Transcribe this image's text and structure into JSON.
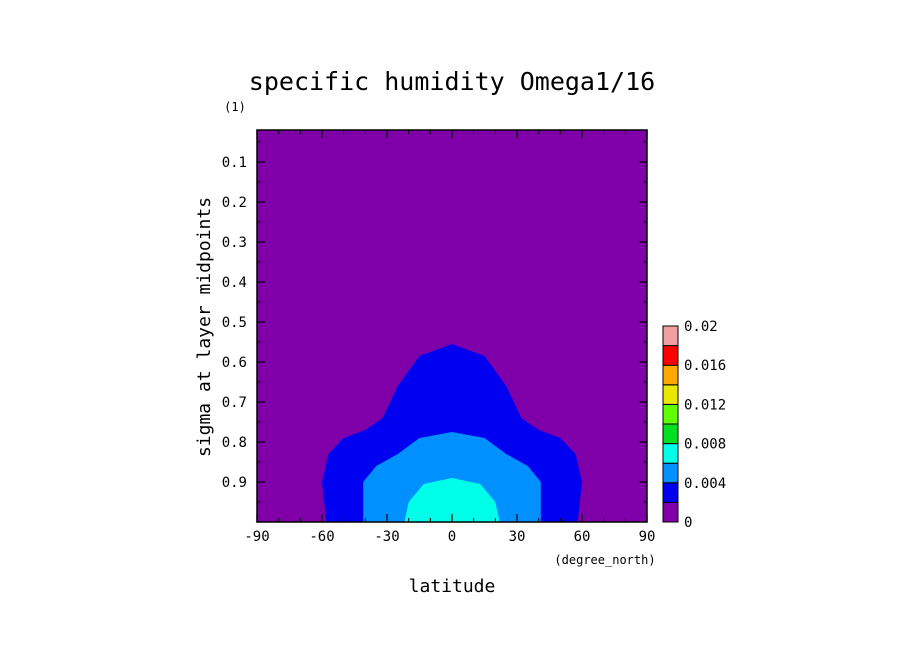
{
  "chart_data": {
    "type": "contour",
    "title": "specific humidity Omega1/16",
    "xlabel": "latitude",
    "xunits": "(degree_north)",
    "ylabel": "sigma at layer midpoints",
    "yunits": "(1)",
    "xlim": [
      -90,
      90
    ],
    "ylim": [
      1.0,
      0.02
    ],
    "x_ticks": [
      -90,
      -60,
      -30,
      0,
      30,
      60,
      90
    ],
    "x_tick_labels": [
      "-90",
      "-60",
      "-30",
      "0",
      "30",
      "60",
      "90"
    ],
    "y_ticks": [
      0.1,
      0.2,
      0.3,
      0.4,
      0.5,
      0.6,
      0.7,
      0.8,
      0.9
    ],
    "y_tick_labels": [
      "0.1",
      "0.2",
      "0.3",
      "0.4",
      "0.5",
      "0.6",
      "0.7",
      "0.8",
      "0.9"
    ],
    "background_color": "#7f00a8",
    "levels": [
      {
        "min": 0.002,
        "color": "#0000f0",
        "boundary": [
          [
            -58,
            1.0
          ],
          [
            -60,
            0.9
          ],
          [
            -57,
            0.83
          ],
          [
            -50,
            0.79
          ],
          [
            -40,
            0.77
          ],
          [
            -32,
            0.74
          ],
          [
            -25,
            0.66
          ],
          [
            -15,
            0.585
          ],
          [
            0,
            0.555
          ],
          [
            15,
            0.585
          ],
          [
            25,
            0.66
          ],
          [
            32,
            0.74
          ],
          [
            40,
            0.77
          ],
          [
            50,
            0.79
          ],
          [
            57,
            0.83
          ],
          [
            60,
            0.9
          ],
          [
            58,
            1.0
          ]
        ]
      },
      {
        "min": 0.004,
        "color": "#0090ff",
        "boundary": [
          [
            -41,
            1.0
          ],
          [
            -41,
            0.9
          ],
          [
            -35,
            0.86
          ],
          [
            -25,
            0.83
          ],
          [
            -15,
            0.79
          ],
          [
            0,
            0.775
          ],
          [
            15,
            0.79
          ],
          [
            25,
            0.83
          ],
          [
            35,
            0.86
          ],
          [
            41,
            0.9
          ],
          [
            41,
            1.0
          ]
        ]
      },
      {
        "min": 0.006,
        "color": "#00ffe8",
        "boundary": [
          [
            -22,
            1.0
          ],
          [
            -20,
            0.95
          ],
          [
            -13,
            0.905
          ],
          [
            0,
            0.89
          ],
          [
            13,
            0.905
          ],
          [
            20,
            0.95
          ],
          [
            22,
            1.0
          ]
        ]
      }
    ],
    "colorbar": {
      "labels": [
        "0",
        "0.004",
        "0.008",
        "0.012",
        "0.016",
        "0.02"
      ],
      "bands": [
        {
          "from": 0,
          "to": 0.002,
          "color": "#7f00a8"
        },
        {
          "from": 0.002,
          "to": 0.004,
          "color": "#0000f0"
        },
        {
          "from": 0.004,
          "to": 0.006,
          "color": "#0090ff"
        },
        {
          "from": 0.006,
          "to": 0.008,
          "color": "#00ffe8"
        },
        {
          "from": 0.008,
          "to": 0.01,
          "color": "#00e020"
        },
        {
          "from": 0.01,
          "to": 0.012,
          "color": "#60ff00"
        },
        {
          "from": 0.012,
          "to": 0.014,
          "color": "#e8e800"
        },
        {
          "from": 0.014,
          "to": 0.016,
          "color": "#ffa800"
        },
        {
          "from": 0.016,
          "to": 0.018,
          "color": "#ff0000"
        },
        {
          "from": 0.018,
          "to": 0.02,
          "color": "#f0a0a0"
        }
      ]
    }
  }
}
